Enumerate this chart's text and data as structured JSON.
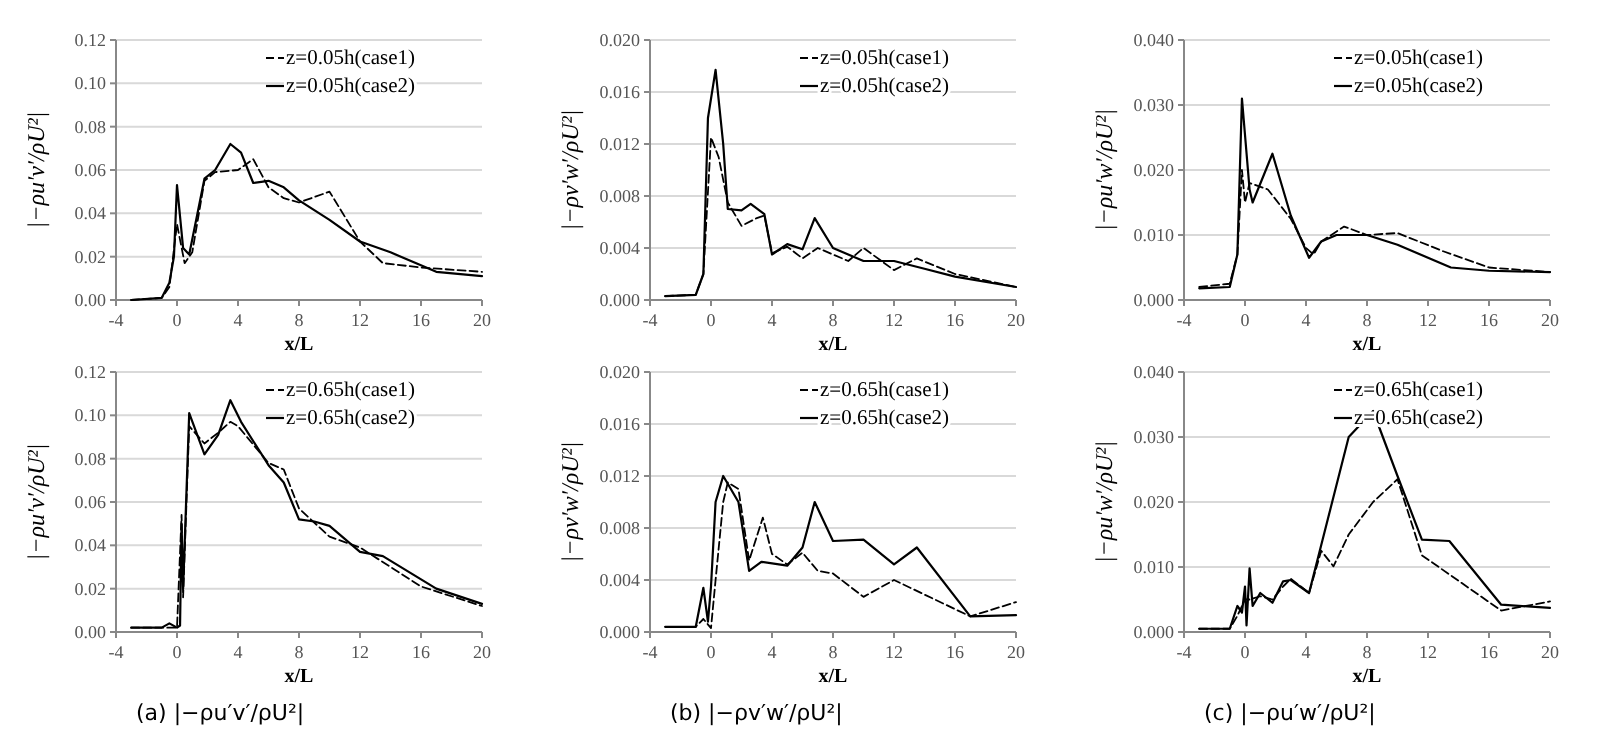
{
  "chart_data": [
    {
      "type": "line",
      "xlabel": "x/L",
      "ylabel": "|−ρu′v′/ρU²|",
      "xlim": [
        -4,
        20
      ],
      "xticks": [
        -4,
        0,
        4,
        8,
        12,
        16,
        20
      ],
      "ylim": [
        0,
        0.12
      ],
      "yticks": [
        {
          "value": 0,
          "label": "0.00"
        },
        {
          "value": 0.02,
          "label": "0.02"
        },
        {
          "value": 0.04,
          "label": "0.04"
        },
        {
          "value": 0.06,
          "label": "0.06"
        },
        {
          "value": 0.08,
          "label": "0.08"
        },
        {
          "value": 0.1,
          "label": "0.10"
        },
        {
          "value": 0.12,
          "label": "0.12"
        }
      ],
      "grid": "y",
      "legend": "top right",
      "marker": "none",
      "series": [
        {
          "name": "z=0.05h(case1)",
          "color": "#000000",
          "line_style": "dashed",
          "x": [
            -3,
            -1,
            -0.5,
            0,
            0.5,
            1,
            1.8,
            2.5,
            4,
            5,
            6,
            7,
            8,
            10,
            12,
            13.5,
            16,
            20
          ],
          "values": [
            0,
            0.001,
            0.006,
            0.035,
            0.017,
            0.022,
            0.055,
            0.059,
            0.06,
            0.065,
            0.052,
            0.047,
            0.045,
            0.05,
            0.027,
            0.017,
            0.015,
            0.013
          ]
        },
        {
          "name": "z=0.05h(case2)",
          "color": "#000000",
          "line_style": "solid",
          "x": [
            -3,
            -1,
            -0.5,
            -0.2,
            0,
            0.4,
            0.8,
            1.8,
            2.5,
            3.5,
            4.2,
            5,
            6,
            7,
            8,
            10,
            12,
            14,
            17,
            20
          ],
          "values": [
            0,
            0.001,
            0.008,
            0.02,
            0.053,
            0.024,
            0.021,
            0.056,
            0.06,
            0.072,
            0.068,
            0.054,
            0.055,
            0.052,
            0.046,
            0.037,
            0.027,
            0.022,
            0.013,
            0.011
          ]
        }
      ]
    },
    {
      "type": "line",
      "xlabel": "x/L",
      "ylabel": "|−ρv′w′/ρU²|",
      "xlim": [
        -4,
        20
      ],
      "xticks": [
        -4,
        0,
        4,
        8,
        12,
        16,
        20
      ],
      "ylim": [
        0,
        0.02
      ],
      "yticks": [
        {
          "value": 0,
          "label": "0.000"
        },
        {
          "value": 0.004,
          "label": "0.004"
        },
        {
          "value": 0.008,
          "label": "0.008"
        },
        {
          "value": 0.012,
          "label": "0.012"
        },
        {
          "value": 0.016,
          "label": "0.016"
        },
        {
          "value": 0.02,
          "label": "0.020"
        }
      ],
      "grid": "y",
      "legend": "top right",
      "marker": "none",
      "series": [
        {
          "name": "z=0.05h(case1)",
          "color": "#000000",
          "line_style": "dashed",
          "x": [
            -3,
            -1,
            -0.5,
            0,
            0.5,
            1.1,
            2,
            3,
            3.5,
            4,
            5,
            6,
            7,
            9,
            10,
            12,
            13.5,
            16,
            20
          ],
          "values": [
            0.0003,
            0.0004,
            0.002,
            0.0125,
            0.011,
            0.0075,
            0.0057,
            0.0063,
            0.0065,
            0.0036,
            0.0041,
            0.0032,
            0.004,
            0.003,
            0.004,
            0.0023,
            0.0032,
            0.002,
            0.001
          ]
        },
        {
          "name": "z=0.05h(case2)",
          "color": "#000000",
          "line_style": "solid",
          "x": [
            -3,
            -1,
            -0.5,
            -0.2,
            0.3,
            0.8,
            1.1,
            2,
            2.6,
            3.5,
            4,
            5,
            6,
            6.8,
            8,
            10,
            12,
            14,
            16,
            20
          ],
          "values": [
            0.0003,
            0.0004,
            0.002,
            0.014,
            0.0177,
            0.012,
            0.007,
            0.0069,
            0.0074,
            0.0066,
            0.0035,
            0.0043,
            0.0039,
            0.0063,
            0.004,
            0.003,
            0.003,
            0.0024,
            0.0018,
            0.001
          ]
        }
      ]
    },
    {
      "type": "line",
      "xlabel": "x/L",
      "ylabel": "|−ρu′w′/ρU²|",
      "xlim": [
        -4,
        20
      ],
      "xticks": [
        -4,
        0,
        4,
        8,
        12,
        16,
        20
      ],
      "ylim": [
        0,
        0.04
      ],
      "yticks": [
        {
          "value": 0,
          "label": "0.000"
        },
        {
          "value": 0.01,
          "label": "0.010"
        },
        {
          "value": 0.02,
          "label": "0.020"
        },
        {
          "value": 0.03,
          "label": "0.030"
        },
        {
          "value": 0.04,
          "label": "0.040"
        }
      ],
      "grid": "y",
      "legend": "top right",
      "marker": "none",
      "series": [
        {
          "name": "z=0.05h(case1)",
          "color": "#000000",
          "line_style": "dashed",
          "x": [
            -3,
            -1,
            -0.5,
            -0.2,
            0,
            0.3,
            1.5,
            3,
            4,
            4.5,
            5,
            6.5,
            8,
            10,
            13,
            16,
            20
          ],
          "values": [
            0.002,
            0.0025,
            0.007,
            0.02,
            0.015,
            0.018,
            0.017,
            0.0125,
            0.008,
            0.007,
            0.009,
            0.0113,
            0.01,
            0.0103,
            0.0075,
            0.005,
            0.0043
          ]
        },
        {
          "name": "z=0.05h(case2)",
          "color": "#000000",
          "line_style": "solid",
          "x": [
            -3,
            -1,
            -0.5,
            -0.2,
            0.3,
            0.5,
            1.8,
            3,
            4.2,
            5,
            6,
            8,
            10,
            13.5,
            16,
            20
          ],
          "values": [
            0.0018,
            0.002,
            0.007,
            0.031,
            0.017,
            0.015,
            0.0225,
            0.013,
            0.0065,
            0.009,
            0.01,
            0.01,
            0.0085,
            0.005,
            0.0045,
            0.0043
          ]
        }
      ]
    },
    {
      "type": "line",
      "xlabel": "x/L",
      "ylabel": "|−ρu′v′/ρU²|",
      "annotations": [
        "(a) |−ρu′v′/ρU²|"
      ],
      "xlim": [
        -4,
        20
      ],
      "xticks": [
        -4,
        0,
        4,
        8,
        12,
        16,
        20
      ],
      "ylim": [
        0,
        0.12
      ],
      "yticks": [
        {
          "value": 0,
          "label": "0.00"
        },
        {
          "value": 0.02,
          "label": "0.02"
        },
        {
          "value": 0.04,
          "label": "0.04"
        },
        {
          "value": 0.06,
          "label": "0.06"
        },
        {
          "value": 0.08,
          "label": "0.08"
        },
        {
          "value": 0.1,
          "label": "0.10"
        },
        {
          "value": 0.12,
          "label": "0.12"
        }
      ],
      "grid": "y",
      "legend": "top right",
      "marker": "none",
      "series": [
        {
          "name": "z=0.65h(case1)",
          "color": "#000000",
          "line_style": "dashed",
          "x": [
            -3,
            -1,
            0,
            0.3,
            0.4,
            0.8,
            1.8,
            2.7,
            3.5,
            4,
            6,
            7,
            8,
            10,
            12,
            16,
            20
          ],
          "values": [
            0.002,
            0.002,
            0.002,
            0.054,
            0.016,
            0.095,
            0.087,
            0.092,
            0.097,
            0.095,
            0.078,
            0.075,
            0.057,
            0.044,
            0.039,
            0.021,
            0.012
          ]
        },
        {
          "name": "z=0.65h(case2)",
          "color": "#000000",
          "line_style": "solid",
          "x": [
            -3,
            -1,
            -0.5,
            0,
            0.2,
            0.3,
            0.4,
            0.8,
            1.8,
            2.7,
            3.5,
            4.2,
            6,
            7,
            8,
            9,
            10,
            12,
            13.5,
            17,
            20
          ],
          "values": [
            0.002,
            0.002,
            0.004,
            0.002,
            0.003,
            0.05,
            0.02,
            0.101,
            0.082,
            0.091,
            0.107,
            0.097,
            0.077,
            0.069,
            0.052,
            0.051,
            0.049,
            0.037,
            0.035,
            0.02,
            0.013
          ]
        }
      ]
    },
    {
      "type": "line",
      "xlabel": "x/L",
      "ylabel": "|−ρv′w′/ρU²|",
      "annotations": [
        "(b) |−ρv′w′/ρU²|"
      ],
      "xlim": [
        -4,
        20
      ],
      "xticks": [
        -4,
        0,
        4,
        8,
        12,
        16,
        20
      ],
      "ylim": [
        0,
        0.02
      ],
      "yticks": [
        {
          "value": 0,
          "label": "0.000"
        },
        {
          "value": 0.004,
          "label": "0.004"
        },
        {
          "value": 0.008,
          "label": "0.008"
        },
        {
          "value": 0.012,
          "label": "0.012"
        },
        {
          "value": 0.016,
          "label": "0.016"
        },
        {
          "value": 0.02,
          "label": "0.020"
        }
      ],
      "grid": "y",
      "legend": "top right",
      "marker": "none",
      "series": [
        {
          "name": "z=0.65h(case1)",
          "color": "#000000",
          "line_style": "dashed",
          "x": [
            -3,
            -1,
            -0.5,
            0,
            0.3,
            0.8,
            1.1,
            1.8,
            2.5,
            3.4,
            4,
            5,
            6,
            7,
            8,
            10,
            12,
            17,
            20
          ],
          "values": [
            0.0004,
            0.0004,
            0.001,
            0.0003,
            0.004,
            0.01,
            0.0115,
            0.011,
            0.0055,
            0.0088,
            0.006,
            0.0052,
            0.0061,
            0.0047,
            0.0045,
            0.0027,
            0.004,
            0.0012,
            0.0023
          ]
        },
        {
          "name": "z=0.65h(case2)",
          "color": "#000000",
          "line_style": "solid",
          "x": [
            -3,
            -1,
            -0.5,
            -0.2,
            0,
            0.3,
            0.8,
            1.8,
            2.5,
            3.3,
            5,
            6,
            6.8,
            8,
            10,
            12,
            13.5,
            17,
            20
          ],
          "values": [
            0.0004,
            0.0004,
            0.0034,
            0.0008,
            0.0035,
            0.01,
            0.012,
            0.01,
            0.0047,
            0.0054,
            0.0051,
            0.0065,
            0.01,
            0.007,
            0.0071,
            0.0052,
            0.0065,
            0.0012,
            0.0013
          ]
        }
      ]
    },
    {
      "type": "line",
      "xlabel": "x/L",
      "ylabel": "|−ρu′w′/ρU²|",
      "annotations": [
        "(c) |−ρu′w′/ρU²|"
      ],
      "xlim": [
        -4,
        20
      ],
      "xticks": [
        -4,
        0,
        4,
        8,
        12,
        16,
        20
      ],
      "ylim": [
        0,
        0.04
      ],
      "yticks": [
        {
          "value": 0,
          "label": "0.000"
        },
        {
          "value": 0.01,
          "label": "0.010"
        },
        {
          "value": 0.02,
          "label": "0.020"
        },
        {
          "value": 0.03,
          "label": "0.030"
        },
        {
          "value": 0.04,
          "label": "0.040"
        }
      ],
      "grid": "y",
      "legend": "top right",
      "marker": "none",
      "series": [
        {
          "name": "z=0.65h(case1)",
          "color": "#000000",
          "line_style": "dashed",
          "x": [
            -3,
            -1,
            -0.5,
            0,
            0.3,
            1,
            1.8,
            2.5,
            3,
            4.2,
            5,
            5.8,
            6.8,
            8.4,
            10,
            11.6,
            16.8,
            20
          ],
          "values": [
            0.0005,
            0.0005,
            0.0025,
            0.005,
            0.005,
            0.0055,
            0.005,
            0.007,
            0.0082,
            0.006,
            0.0125,
            0.0101,
            0.015,
            0.02,
            0.0235,
            0.0118,
            0.0033,
            0.0047
          ]
        },
        {
          "name": "z=0.65h(case2)",
          "color": "#000000",
          "line_style": "solid",
          "x": [
            -3,
            -1,
            -0.5,
            -0.2,
            0,
            0.1,
            0.3,
            0.5,
            1,
            1.8,
            2.5,
            3,
            4.2,
            6.8,
            8.4,
            10,
            11.6,
            13.4,
            16.8,
            20
          ],
          "values": [
            0.0005,
            0.0005,
            0.004,
            0.003,
            0.007,
            0.001,
            0.0098,
            0.004,
            0.006,
            0.0045,
            0.0078,
            0.008,
            0.006,
            0.03,
            0.034,
            0.024,
            0.0142,
            0.014,
            0.0042,
            0.0037
          ]
        }
      ]
    }
  ]
}
